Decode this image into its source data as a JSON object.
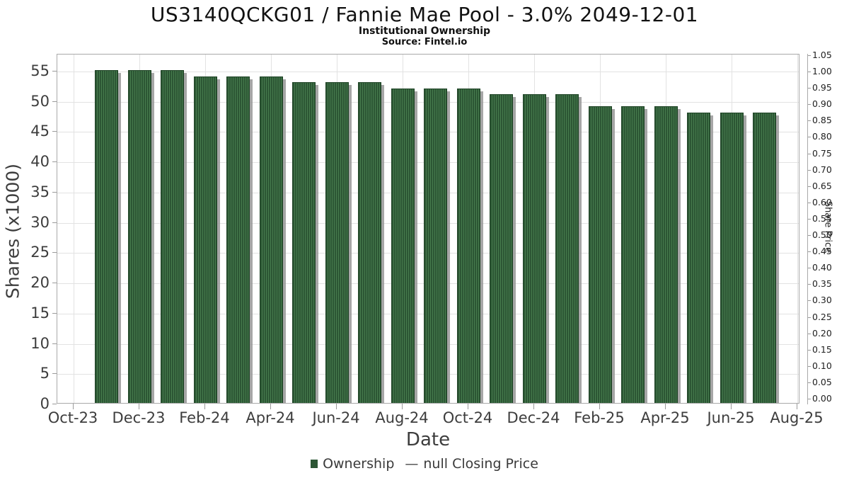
{
  "header": {
    "title": "US3140QCKG01 / Fannie Mae Pool - 3.0% 2049-12-01",
    "subtitle": "Institutional Ownership",
    "source": "Source: Fintel.io"
  },
  "chart_data": {
    "type": "bar",
    "title": "US3140QCKG01 / Fannie Mae Pool - 3.0% 2049-12-01",
    "subtitle": "Institutional Ownership",
    "source": "Source: Fintel.io",
    "xlabel": "Date",
    "ylabel_left": "Shares (x1000)",
    "ylabel_right": "Share Price",
    "categories": [
      "Nov-23",
      "Dec-23",
      "Jan-24",
      "Feb-24",
      "Mar-24",
      "Apr-24",
      "May-24",
      "Jun-24",
      "Jul-24",
      "Aug-24",
      "Sep-24",
      "Oct-24",
      "Nov-24",
      "Dec-24",
      "Jan-25",
      "Feb-25",
      "Mar-25",
      "Apr-25",
      "May-25",
      "Jun-25",
      "Jul-25"
    ],
    "series": [
      {
        "name": "Ownership",
        "values": [
          55,
          55,
          55,
          54,
          54,
          54,
          53,
          53,
          53,
          52,
          52,
          52,
          51,
          51,
          51,
          49,
          49,
          49,
          48,
          48,
          48
        ]
      }
    ],
    "x_tick_labels": [
      "Oct-23",
      "Dec-23",
      "Feb-24",
      "Apr-24",
      "Jun-24",
      "Aug-24",
      "Oct-24",
      "Dec-24",
      "Feb-25",
      "Apr-25",
      "Jun-25",
      "Aug-25"
    ],
    "y_left_ticks": [
      0,
      5,
      10,
      15,
      20,
      25,
      30,
      35,
      40,
      45,
      50,
      55
    ],
    "y_left_range": [
      0,
      57.8
    ],
    "y_right_ticks": [
      "0.00",
      "0.05",
      "0.10",
      "0.15",
      "0.20",
      "0.25",
      "0.30",
      "0.35",
      "0.40",
      "0.45",
      "0.50",
      "0.55",
      "0.60",
      "0.65",
      "0.70",
      "0.75",
      "0.80",
      "0.85",
      "0.90",
      "0.95",
      "1.00",
      "1.05"
    ],
    "y_right_range": [
      0,
      1.05
    ],
    "grid": true,
    "legend_position": "bottom",
    "legend": [
      {
        "label": "Ownership",
        "marker": "square",
        "color": "#2c5634"
      },
      {
        "label": "null Closing Price",
        "marker": "dash",
        "color": "#4a4a4a"
      }
    ],
    "colors": {
      "bar": "#2c5634",
      "bar_stripe": "#477c4e",
      "bar_border": "#1f4426",
      "bar_shadow": "#969696",
      "grid": "#e2e2e2",
      "spine": "#a9a9a9",
      "text": "#3d3d3d"
    }
  }
}
